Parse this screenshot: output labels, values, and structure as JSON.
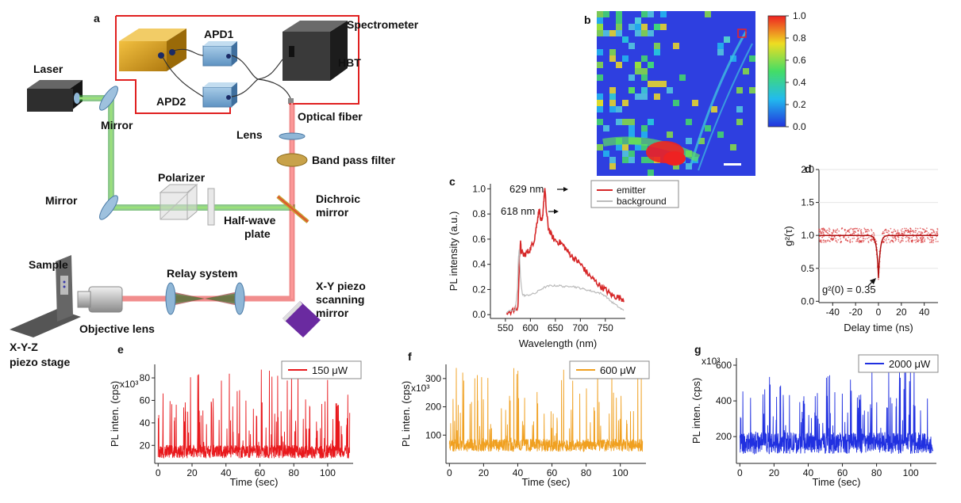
{
  "panel_letters": {
    "a": "a",
    "b": "b",
    "c": "c",
    "d": "d",
    "e": "e",
    "f": "f",
    "g": "g"
  },
  "setup": {
    "spectrometer": "Spectrometer",
    "hbt": "HBT",
    "apd1": "APD1",
    "apd2": "APD2",
    "laser": "Laser",
    "mirror_top": "Mirror",
    "optical_fiber": "Optical fiber",
    "lens": "Lens",
    "band_pass_filter": "Band pass filter",
    "polarizer": "Polarizer",
    "mirror_left": "Mirror",
    "dichroic_line1": "Dichroic",
    "dichroic_line2": "mirror",
    "halfwave_line1": "Half-wave",
    "halfwave_line2": "plate",
    "sample": "Sample",
    "relay_system": "Relay system",
    "xy_line1": "X-Y piezo",
    "xy_line2": "scanning",
    "xy_line3": "mirror",
    "objective_lens": "Objective lens",
    "xyz_line1": "X-Y-Z",
    "xyz_line2": "piezo stage",
    "colors": {
      "laser_green": "#3aaa35",
      "emission_red": "#e53030",
      "hbt_box": "#e02020"
    }
  },
  "colorbar": {
    "ticks": [
      "1.0",
      "0.8",
      "0.6",
      "0.4",
      "0.2",
      "0.0"
    ]
  },
  "chart_data": [
    {
      "panel": "c",
      "type": "line",
      "xlabel": "Wavelength (nm)",
      "ylabel": "PL intensity  (a.u.)",
      "xlim": [
        520,
        790
      ],
      "ylim": [
        -0.03,
        1.04
      ],
      "xticks": [
        "550",
        "600",
        "650",
        "700",
        "750"
      ],
      "yticks": [
        "0.0",
        "0.2",
        "0.4",
        "0.6",
        "0.8",
        "1.0"
      ],
      "legend_position": "top-right",
      "annotations": [
        "629 nm",
        "618 nm"
      ],
      "series": [
        {
          "name": "emitter",
          "color": "#d62728",
          "x": [
            552,
            565,
            575,
            578,
            580,
            582,
            587,
            592,
            598,
            603,
            608,
            612,
            615,
            618,
            621,
            624,
            627,
            629,
            632,
            636,
            641,
            647,
            654,
            661,
            668,
            675,
            682,
            689,
            696,
            703,
            710,
            718,
            726,
            734,
            742,
            750,
            758,
            766,
            774,
            782,
            788
          ],
          "y": [
            0.02,
            0.03,
            0.05,
            0.42,
            0.58,
            0.5,
            0.47,
            0.49,
            0.51,
            0.55,
            0.6,
            0.7,
            0.78,
            0.84,
            0.73,
            0.75,
            0.92,
            1.0,
            0.82,
            0.69,
            0.64,
            0.6,
            0.58,
            0.57,
            0.54,
            0.5,
            0.47,
            0.44,
            0.42,
            0.39,
            0.35,
            0.31,
            0.28,
            0.25,
            0.22,
            0.2,
            0.17,
            0.15,
            0.14,
            0.13,
            0.12
          ]
        },
        {
          "name": "background",
          "color": "#bbbbbb",
          "x": [
            552,
            570,
            574,
            576,
            578,
            580,
            584,
            590,
            600,
            610,
            620,
            630,
            640,
            650,
            660,
            670,
            680,
            690,
            700,
            710,
            720,
            730,
            740,
            750,
            760,
            770,
            780,
            788
          ],
          "y": [
            0.02,
            0.04,
            0.2,
            0.45,
            0.52,
            0.3,
            0.16,
            0.15,
            0.16,
            0.17,
            0.2,
            0.22,
            0.23,
            0.23,
            0.23,
            0.22,
            0.23,
            0.22,
            0.21,
            0.2,
            0.19,
            0.18,
            0.17,
            0.15,
            0.11,
            0.08,
            0.05,
            0.03
          ]
        }
      ]
    },
    {
      "panel": "d",
      "type": "scatter",
      "xlabel": "Delay time (ns)",
      "ylabel": "g²(τ)",
      "xlim": [
        -52,
        52
      ],
      "ylim": [
        -0.02,
        2.0
      ],
      "xticks": [
        "-40",
        "-20",
        "0",
        "20",
        "40"
      ],
      "yticks": [
        "0.0",
        "0.5",
        "1.0",
        "1.5",
        "2.0"
      ],
      "annotation": "g²(0) = 0.35",
      "g2_zero": 0.35,
      "fit_baseline": 1.0,
      "fit_width_ns": 1.5,
      "color": "#d62728"
    },
    {
      "panel": "e",
      "type": "line",
      "xlabel": "Time (sec)",
      "ylabel": "PL inten. (cps)",
      "yunit": "x10³",
      "xlim": [
        -2,
        115
      ],
      "ylim": [
        4,
        92
      ],
      "xticks": [
        "0",
        "20",
        "40",
        "60",
        "80",
        "100"
      ],
      "yticks": [
        "20",
        "40",
        "60",
        "80"
      ],
      "ytick_values": [
        20,
        40,
        60,
        80
      ],
      "legend_position": "top-right",
      "series": [
        {
          "name": "150 μW",
          "color": "#e8181c",
          "baseline": 12,
          "spread": 12,
          "peak": 88,
          "n": 900
        }
      ]
    },
    {
      "panel": "f",
      "type": "line",
      "xlabel": "Time (sec)",
      "ylabel": "PL inten. (cps)",
      "yunit": "x10³",
      "xlim": [
        -2,
        115
      ],
      "ylim": [
        0,
        350
      ],
      "xticks": [
        "0",
        "20",
        "40",
        "60",
        "80",
        "100"
      ],
      "yticks": [
        "100",
        "200",
        "300"
      ],
      "ytick_values": [
        100,
        200,
        300
      ],
      "legend_position": "top-right",
      "series": [
        {
          "name": "600 μW",
          "color": "#f0a020",
          "baseline": 55,
          "spread": 45,
          "peak": 340,
          "n": 900
        }
      ]
    },
    {
      "panel": "g",
      "type": "line",
      "xlabel": "Time (sec)",
      "ylabel": "PL inten. (cps)",
      "yunit": "x10³",
      "xlim": [
        -2,
        115
      ],
      "ylim": [
        50,
        640
      ],
      "xticks": [
        "0",
        "20",
        "40",
        "60",
        "80",
        "100"
      ],
      "yticks": [
        "200",
        "400",
        "600"
      ],
      "ytick_values": [
        200,
        400,
        600
      ],
      "legend_position": "top-right",
      "series": [
        {
          "name": "2000 μW",
          "color": "#2030e0",
          "baseline": 140,
          "spread": 120,
          "peak": 620,
          "n": 900
        }
      ]
    }
  ]
}
